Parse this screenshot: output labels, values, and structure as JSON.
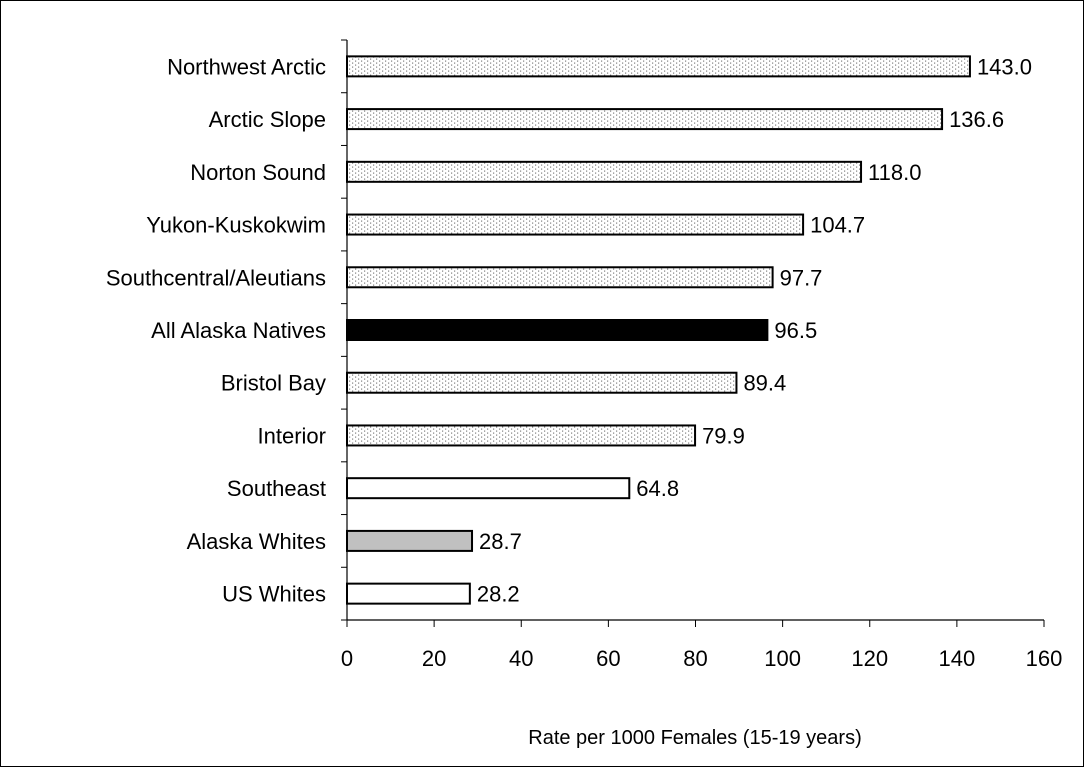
{
  "chart_data": {
    "type": "bar",
    "orientation": "horizontal",
    "title": "",
    "xlabel": "Rate per 1000 Females (15-19 years)",
    "ylabel": "",
    "xlim": [
      0,
      160
    ],
    "xticks": [
      0,
      20,
      40,
      60,
      80,
      100,
      120,
      140,
      160
    ],
    "grid": false,
    "legend": "none",
    "categories": [
      "Northwest Arctic",
      "Arctic Slope",
      "Norton Sound",
      "Yukon-Kuskokwim",
      "Southcentral/Aleutians",
      "All Alaska Natives",
      "Bristol Bay",
      "Interior",
      "Southeast",
      "Alaska Whites",
      "US Whites"
    ],
    "values": [
      143.0,
      136.6,
      118.0,
      104.7,
      97.7,
      96.5,
      89.4,
      79.9,
      64.8,
      28.7,
      28.2
    ],
    "value_labels": [
      "143.0",
      "136.6",
      "118.0",
      "104.7",
      "97.7",
      "96.5",
      "89.4",
      "79.9",
      "64.8",
      "28.7",
      "28.2"
    ],
    "bar_fills": [
      "dotted",
      "dotted",
      "dotted",
      "dotted",
      "dotted",
      "solid-black",
      "dotted",
      "dotted",
      "white",
      "gray",
      "white"
    ],
    "colors": {
      "outline": "#000000",
      "solid-black": "#000000",
      "gray": "#c0c0c0",
      "white": "#ffffff",
      "dot": "#7f7f7f"
    }
  }
}
